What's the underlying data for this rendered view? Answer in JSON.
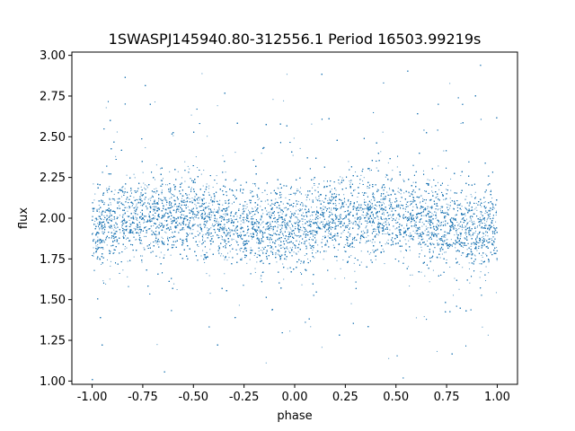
{
  "chart_data": {
    "type": "scatter",
    "title": "1SWASPJ145940.80-312556.1 Period 16503.99219s",
    "xlabel": "phase",
    "ylabel": "flux",
    "xlim": [
      -1.1,
      1.1
    ],
    "ylim": [
      0.98,
      3.02
    ],
    "xticks": [
      "-1.00",
      "-0.75",
      "-0.50",
      "-0.25",
      "0.00",
      "0.25",
      "0.50",
      "0.75",
      "1.00"
    ],
    "xtick_values": [
      -1.0,
      -0.75,
      -0.5,
      -0.25,
      0.0,
      0.25,
      0.5,
      0.75,
      1.0
    ],
    "yticks": [
      "1.00",
      "1.25",
      "1.50",
      "1.75",
      "2.00",
      "2.25",
      "2.50",
      "2.75",
      "3.00"
    ],
    "ytick_values": [
      1.0,
      1.25,
      1.5,
      1.75,
      2.0,
      2.25,
      2.5,
      2.75,
      3.0
    ],
    "grid": false,
    "marker_color": "#1f77b4",
    "series": [
      {
        "x": [
          -1.0,
          -0.875,
          -0.75,
          -0.625,
          -0.5,
          -0.375,
          -0.25,
          -0.125,
          0.0,
          0.125,
          0.25,
          0.375,
          0.5,
          0.625,
          0.75,
          0.875,
          1.0
        ],
        "y": [
          1.95,
          1.98,
          2.01,
          2.02,
          2.01,
          1.98,
          1.95,
          1.93,
          1.95,
          1.98,
          2.01,
          2.02,
          2.01,
          1.98,
          1.95,
          1.93,
          1.95
        ],
        "spread_core": 0.12,
        "y_range": [
          1.0,
          2.95
        ],
        "point_count": 24000
      }
    ]
  }
}
